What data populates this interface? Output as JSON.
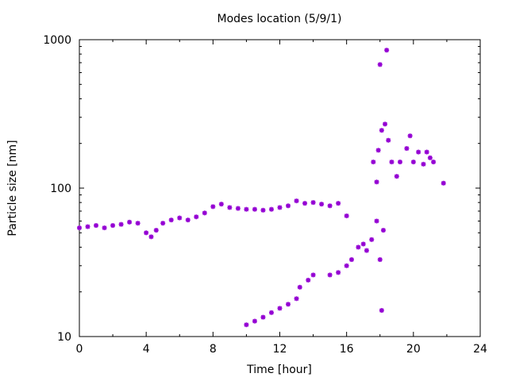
{
  "chart_data": {
    "type": "scatter",
    "title": "Modes location (5/9/1)",
    "xlabel": "Time [hour]",
    "ylabel": "Particle size [nm]",
    "xlim": [
      0,
      24
    ],
    "ylim": [
      10,
      1000
    ],
    "y_scale": "log",
    "x_ticks": [
      0,
      4,
      8,
      12,
      16,
      20,
      24
    ],
    "x_tick_labels": [
      "0",
      "4",
      "8",
      "12",
      "16",
      "20",
      "24"
    ],
    "y_ticks": [
      10,
      100,
      1000
    ],
    "y_tick_labels": [
      "10",
      "100",
      "1000"
    ],
    "grid": false,
    "legend": "none",
    "marker_color": "#9400D3",
    "marker": "asterisk",
    "series": [
      {
        "x": [
          0,
          0.5,
          1,
          1.5,
          2,
          2.5,
          3,
          3.5,
          4,
          4.3,
          4.6,
          5,
          5.5,
          6,
          6.5,
          7,
          7.5,
          8,
          8.5,
          9,
          9.5,
          10,
          10.5,
          11,
          11.5,
          12,
          12.5,
          13,
          13.5,
          14,
          14.5,
          15,
          15.5,
          16
        ],
        "y": [
          54,
          55,
          56,
          54,
          56,
          57,
          59,
          58,
          50,
          47,
          52,
          58,
          61,
          63,
          61,
          64,
          68,
          75,
          78,
          74,
          73,
          72,
          72,
          71,
          72,
          74,
          76,
          82,
          79,
          80,
          78,
          76,
          79,
          65
        ]
      },
      {
        "x": [
          10,
          10.5,
          11,
          11.5,
          12,
          12.5,
          13,
          13.2,
          13.7,
          14,
          15,
          15.5,
          16,
          16.3,
          16.7,
          17,
          17.2,
          17.5,
          17.8,
          18,
          18.2
        ],
        "y": [
          12,
          12.7,
          13.5,
          14.5,
          15.5,
          16.5,
          18,
          21.5,
          24,
          26,
          26,
          27,
          30,
          33,
          40,
          42,
          38,
          45,
          60,
          33,
          52
        ]
      },
      {
        "x": [
          17.6,
          17.8,
          17.9,
          18.0,
          18.1,
          18.3,
          18.5,
          18.7,
          19,
          19.2,
          19.6,
          19.8,
          20,
          20.3,
          20.6,
          20.8,
          21,
          21.2,
          21.8,
          18.1,
          18.4
        ],
        "y": [
          150,
          110,
          180,
          680,
          245,
          270,
          210,
          150,
          120,
          150,
          185,
          225,
          150,
          175,
          145,
          175,
          160,
          150,
          108,
          15,
          850
        ]
      }
    ]
  }
}
